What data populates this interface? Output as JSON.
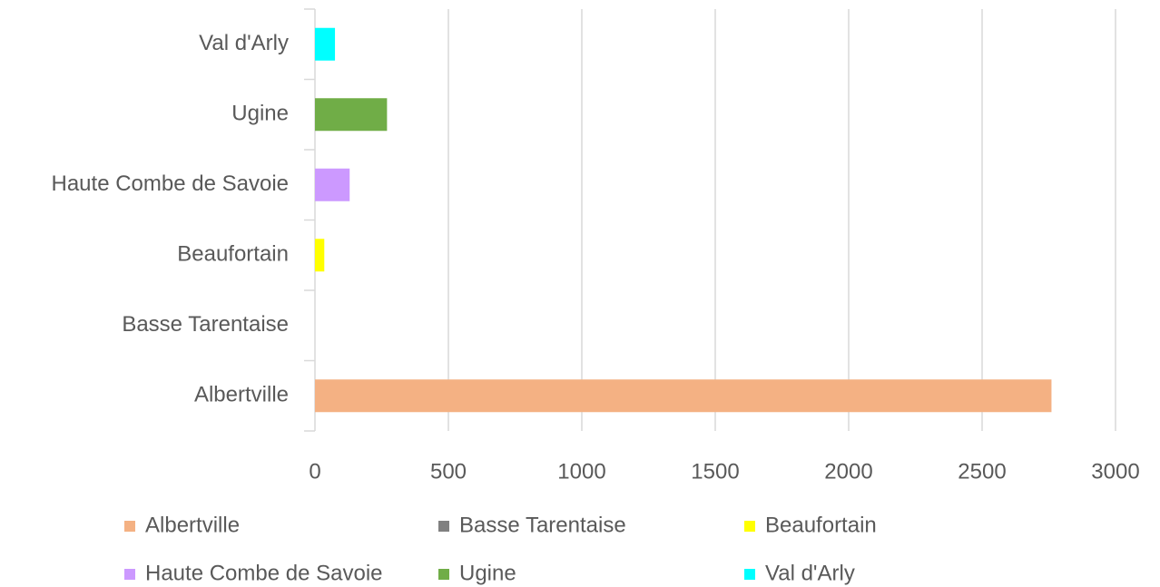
{
  "chart_data": {
    "type": "bar",
    "orientation": "horizontal",
    "categories": [
      "Albertville",
      "Basse Tarentaise",
      "Beaufortain",
      "Haute Combe de Savoie",
      "Ugine",
      "Val d'Arly"
    ],
    "values": [
      2760,
      0,
      35,
      130,
      270,
      75
    ],
    "colors": [
      "#f4b183",
      "#808080",
      "#ffff00",
      "#cc99ff",
      "#70ad47",
      "#00ffff"
    ],
    "xlim": [
      0,
      3000
    ],
    "xticks": [
      0,
      500,
      1000,
      1500,
      2000,
      2500,
      3000
    ],
    "grid": true,
    "legend": "bottom"
  }
}
